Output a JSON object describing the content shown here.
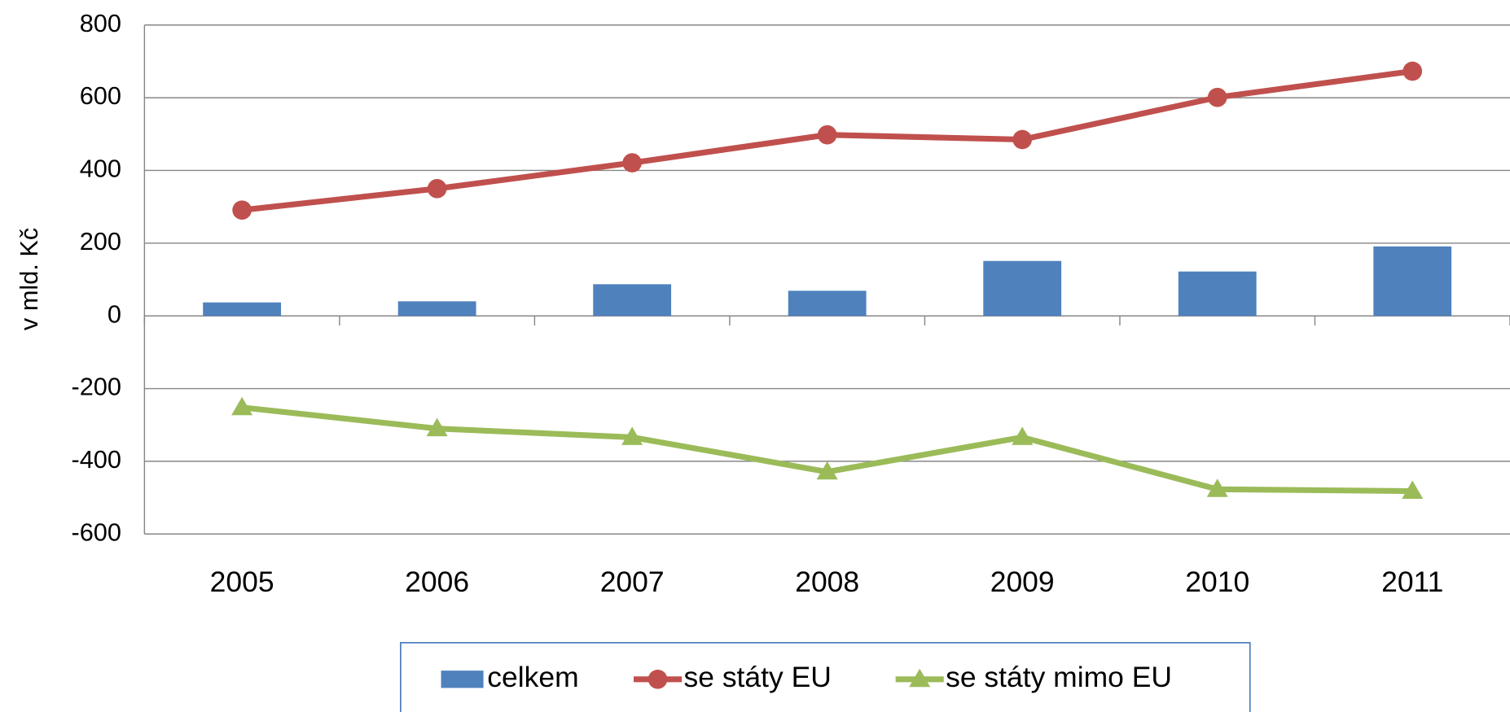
{
  "chart_data": {
    "type": "bar",
    "ylabel": "v mld. Kč",
    "categories": [
      "2005",
      "2006",
      "2007",
      "2008",
      "2009",
      "2010",
      "2011"
    ],
    "series": [
      {
        "name": "celkem",
        "type": "bar",
        "color": "#4f81bd",
        "values": [
          37,
          40,
          87,
          69,
          151,
          122,
          191
        ]
      },
      {
        "name": "se státy EU",
        "type": "line",
        "marker": "circle",
        "color": "#c0504d",
        "values": [
          291,
          350,
          421,
          498,
          485,
          601,
          673
        ]
      },
      {
        "name": "se státy mimo EU",
        "type": "line",
        "marker": "triangle",
        "color": "#9bbb59",
        "values": [
          -252,
          -310,
          -334,
          -429,
          -334,
          -477,
          -482
        ]
      }
    ],
    "ylim": [
      -600,
      800
    ],
    "yticks": [
      -600,
      -400,
      -200,
      0,
      200,
      400,
      600,
      800
    ],
    "grid": true,
    "legend": "bottom"
  }
}
